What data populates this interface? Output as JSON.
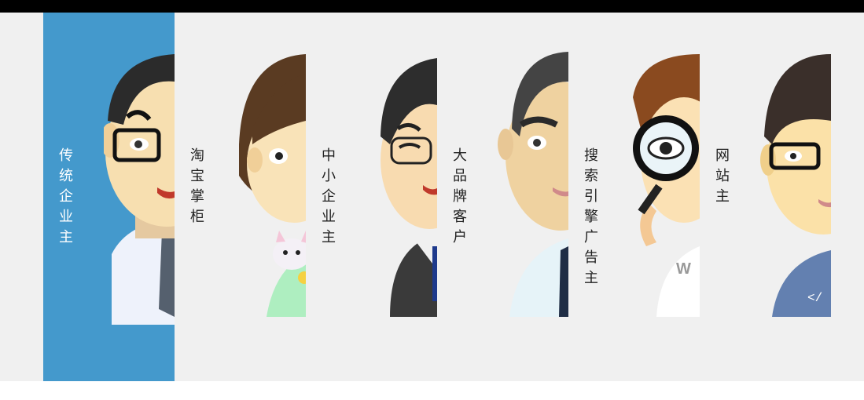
{
  "panels": [
    {
      "label": "传统企业主",
      "character": "businessman-with-glasses",
      "active": true
    },
    {
      "label": "淘宝掌柜",
      "character": "girl-with-cat",
      "active": false
    },
    {
      "label": "中小企业主",
      "character": "man-squinting-with-glasses",
      "active": false
    },
    {
      "label": "大品牌客户",
      "character": "man-with-tie",
      "active": false
    },
    {
      "label": "搜索引擎广告主",
      "character": "curly-hair-with-magnifier",
      "active": false
    },
    {
      "label": "网站主",
      "character": "developer-with-glasses",
      "active": false
    }
  ],
  "colors": {
    "active": "#4499cc",
    "background": "#f0f0f0",
    "topbar": "#000000"
  }
}
